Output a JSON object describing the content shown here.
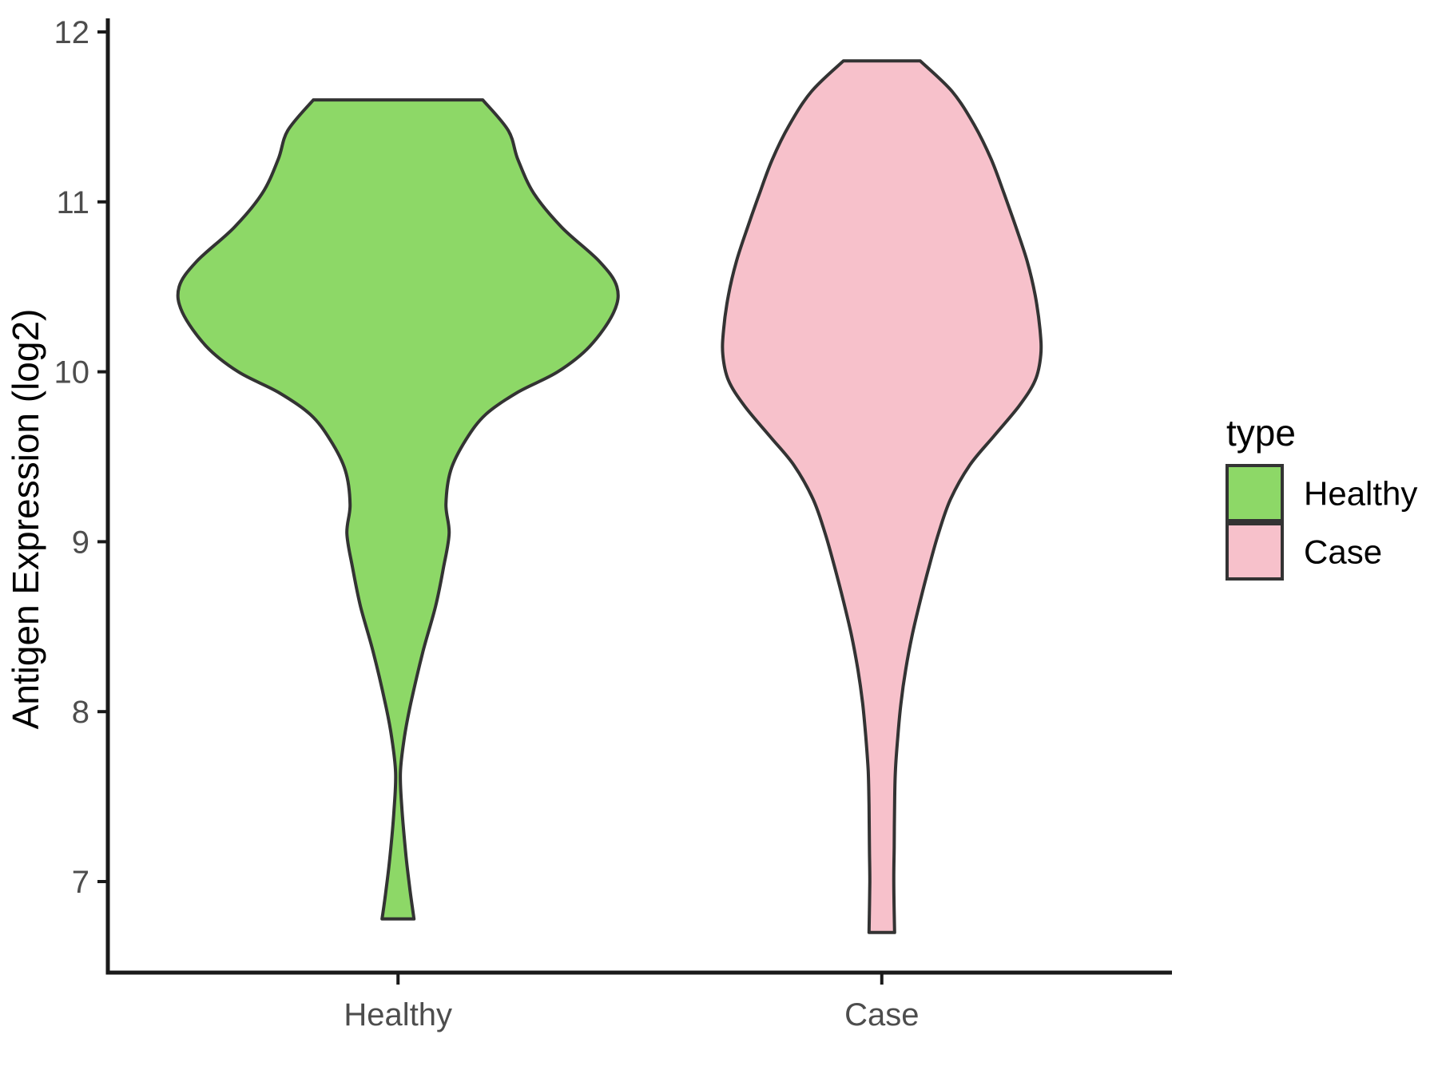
{
  "page": {
    "background": "#ffffff"
  },
  "chart_data": {
    "type": "violin",
    "title": "",
    "xlabel": "",
    "ylabel": "Antigen Expression (log2)",
    "categories": [
      "Healthy",
      "Case"
    ],
    "y_ticks": [
      12,
      11,
      10,
      9,
      8,
      7
    ],
    "y_axis_range": [
      6.45,
      12.1
    ],
    "grid": "off",
    "theme": "classic",
    "legend": {
      "title": "type",
      "position": "right",
      "entries": [
        {
          "label": "Healthy",
          "color": "#8DD867"
        },
        {
          "label": "Case",
          "color": "#F7C1CB"
        }
      ]
    },
    "colors": {
      "healthy_fill": "#8DD867",
      "case_fill": "#F7C1CB",
      "violin_outline": "#333333",
      "axis_line": "#1a1a1a",
      "tick_label": "#4D4D4D",
      "axis_title": "#000000",
      "legend_text": "#000000"
    },
    "profile_format": "[expression_value_log2, half_width_px]",
    "violins": [
      {
        "category": "Healthy",
        "fill": "#8DD867",
        "outline": "#333333",
        "y_max": 11.6,
        "y_min": 6.78,
        "profile": [
          [
            11.6,
            106
          ],
          [
            11.42,
            138
          ],
          [
            11.25,
            150
          ],
          [
            11.05,
            170
          ],
          [
            10.85,
            205
          ],
          [
            10.65,
            252
          ],
          [
            10.5,
            274
          ],
          [
            10.35,
            270
          ],
          [
            10.15,
            240
          ],
          [
            10.0,
            200
          ],
          [
            9.88,
            150
          ],
          [
            9.75,
            110
          ],
          [
            9.6,
            85
          ],
          [
            9.42,
            66
          ],
          [
            9.22,
            60
          ],
          [
            9.05,
            64
          ],
          [
            8.85,
            57
          ],
          [
            8.62,
            47
          ],
          [
            8.35,
            31
          ],
          [
            8.05,
            16
          ],
          [
            7.85,
            8
          ],
          [
            7.64,
            3
          ],
          [
            7.42,
            5
          ],
          [
            7.15,
            10
          ],
          [
            6.95,
            15
          ],
          [
            6.78,
            20
          ]
        ]
      },
      {
        "category": "Case",
        "fill": "#F7C1CB",
        "outline": "#333333",
        "y_max": 11.83,
        "y_min": 6.7,
        "profile": [
          [
            11.83,
            48
          ],
          [
            11.65,
            88
          ],
          [
            11.45,
            116
          ],
          [
            11.25,
            137
          ],
          [
            11.05,
            153
          ],
          [
            10.85,
            168
          ],
          [
            10.65,
            182
          ],
          [
            10.45,
            192
          ],
          [
            10.25,
            198
          ],
          [
            10.1,
            199
          ],
          [
            9.95,
            192
          ],
          [
            9.8,
            172
          ],
          [
            9.62,
            140
          ],
          [
            9.45,
            110
          ],
          [
            9.25,
            86
          ],
          [
            9.05,
            71
          ],
          [
            8.85,
            59
          ],
          [
            8.65,
            48
          ],
          [
            8.45,
            38
          ],
          [
            8.25,
            30
          ],
          [
            8.05,
            24
          ],
          [
            7.85,
            20
          ],
          [
            7.65,
            17
          ],
          [
            7.45,
            16
          ],
          [
            7.2,
            15.5
          ],
          [
            7.0,
            15
          ],
          [
            6.7,
            16
          ]
        ]
      }
    ]
  }
}
